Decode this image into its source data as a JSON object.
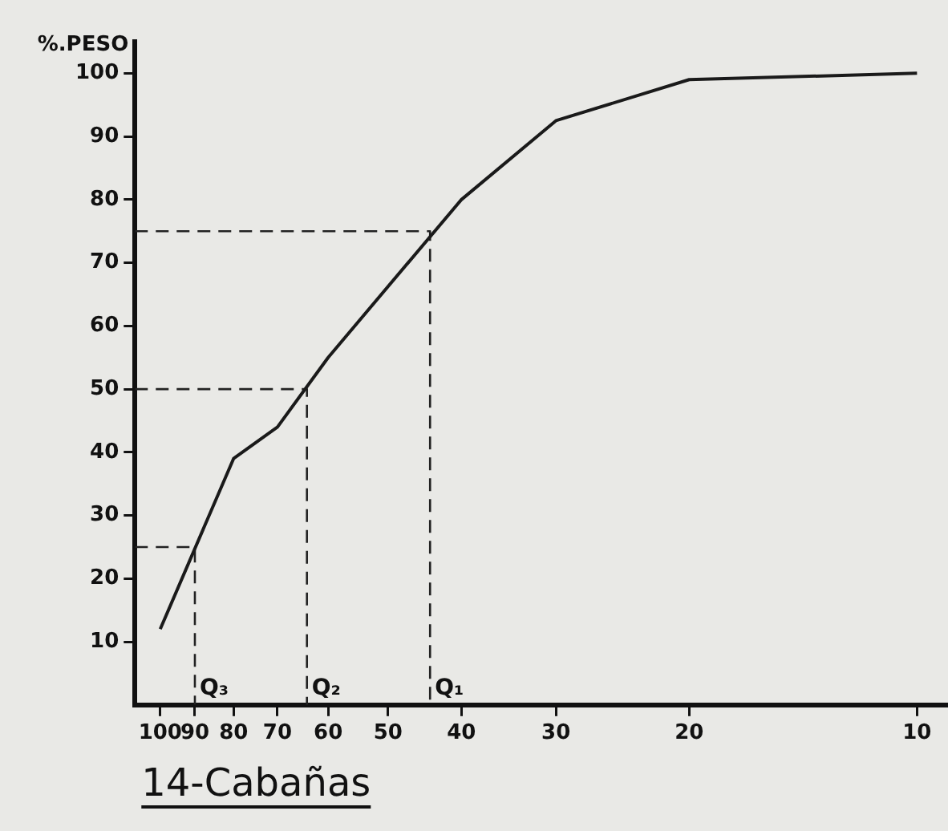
{
  "chart_data": {
    "type": "line",
    "title": "14-Cabañas",
    "ylabel": "%.PESO",
    "x": [
      100,
      80,
      70,
      60,
      40,
      30,
      20,
      10
    ],
    "series": [
      {
        "color": "#1a1a1a",
        "values": [
          12,
          39,
          44,
          55,
          80,
          92.5,
          99,
          100
        ]
      },
      {
        "color": "#222222",
        "line_style": "dashed",
        "x": [
          108,
          90,
          90
        ],
        "values": [
          25,
          25,
          0
        ]
      },
      {
        "color": "#222222",
        "line_style": "dashed",
        "x": [
          108,
          64,
          64
        ],
        "values": [
          50,
          50,
          0
        ]
      },
      {
        "color": "#222222",
        "line_style": "dashed",
        "x": [
          108,
          44,
          44
        ],
        "values": [
          75,
          75,
          0
        ]
      }
    ],
    "log": "x",
    "xlim": [
      108,
      9.1
    ],
    "xticks": [
      100,
      90,
      80,
      70,
      60,
      50,
      40,
      30,
      20,
      10
    ],
    "ylim": [
      0,
      105
    ],
    "yticks": [
      10,
      20,
      30,
      40,
      50,
      60,
      70,
      80,
      90,
      100
    ],
    "grid": false,
    "legend": false,
    "marker": "none",
    "line_style": "solid",
    "annotations": [
      {
        "text": "Q₃",
        "x": 90,
        "y": 0
      },
      {
        "text": "Q₂",
        "x": 64,
        "y": 0
      },
      {
        "text": "Q₁",
        "x": 44,
        "y": 0
      }
    ]
  }
}
